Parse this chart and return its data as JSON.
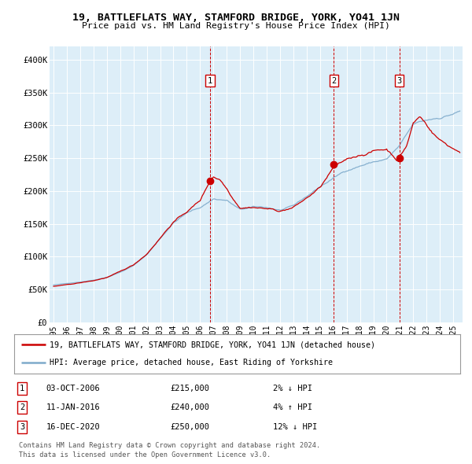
{
  "title": "19, BATTLEFLATS WAY, STAMFORD BRIDGE, YORK, YO41 1JN",
  "subtitle": "Price paid vs. HM Land Registry's House Price Index (HPI)",
  "ylim": [
    0,
    420000
  ],
  "yticks": [
    0,
    50000,
    100000,
    150000,
    200000,
    250000,
    300000,
    350000,
    400000
  ],
  "ytick_labels": [
    "£0",
    "£50K",
    "£100K",
    "£150K",
    "£200K",
    "£250K",
    "£300K",
    "£350K",
    "£400K"
  ],
  "xlim_start": 1994.7,
  "xlim_end": 2025.7,
  "xticks": [
    1995,
    1996,
    1997,
    1998,
    1999,
    2000,
    2001,
    2002,
    2003,
    2004,
    2005,
    2006,
    2007,
    2008,
    2009,
    2010,
    2011,
    2012,
    2013,
    2014,
    2015,
    2016,
    2017,
    2018,
    2019,
    2020,
    2021,
    2022,
    2023,
    2024,
    2025
  ],
  "background_color": "#ddeef8",
  "grid_color": "#ffffff",
  "red_color": "#cc0000",
  "blue_color": "#7eaacb",
  "transactions": [
    {
      "num": 1,
      "date": "03-OCT-2006",
      "price": 215000,
      "pct": "2%",
      "dir": "↓",
      "year": 2006.75
    },
    {
      "num": 2,
      "date": "11-JAN-2016",
      "price": 240000,
      "pct": "4%",
      "dir": "↑",
      "year": 2016.03
    },
    {
      "num": 3,
      "date": "16-DEC-2020",
      "price": 250000,
      "pct": "12%",
      "dir": "↓",
      "year": 2020.95
    }
  ],
  "footnote1": "Contains HM Land Registry data © Crown copyright and database right 2024.",
  "footnote2": "This data is licensed under the Open Government Licence v3.0.",
  "legend_line1": "19, BATTLEFLATS WAY, STAMFORD BRIDGE, YORK, YO41 1JN (detached house)",
  "legend_line2": "HPI: Average price, detached house, East Riding of Yorkshire"
}
